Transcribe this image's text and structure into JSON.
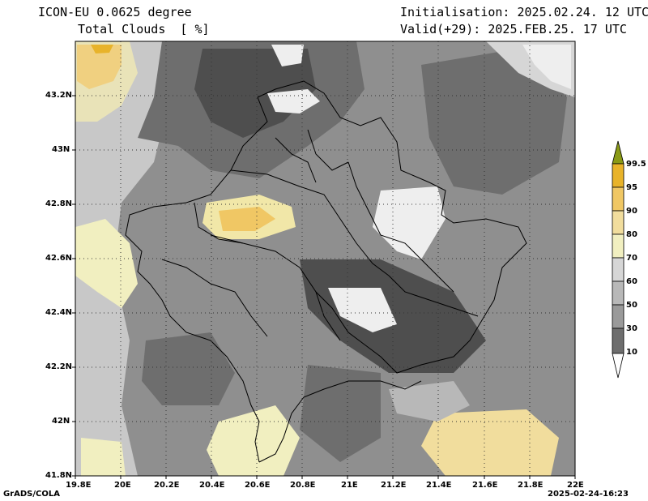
{
  "header": {
    "model": "ICON-EU 0.0625 degree",
    "variable": "Total Clouds  [ %]",
    "init": "Initialisation: 2025.02.24. 12 UTC",
    "valid": "Valid(+29): 2025.FEB.25. 17 UTC"
  },
  "axes": {
    "lat_labels": [
      "43.2N",
      "43N",
      "42.8N",
      "42.6N",
      "42.4N",
      "42.2N",
      "42N",
      "41.8N"
    ],
    "lon_labels": [
      "19.8E",
      "20E",
      "20.2E",
      "20.4E",
      "20.6E",
      "20.8E",
      "21E",
      "21.2E",
      "21.4E",
      "21.6E",
      "21.8E",
      "22E"
    ]
  },
  "legend": {
    "labels": [
      "99.5",
      "95",
      "90",
      "80",
      "70",
      "60",
      "50",
      "30",
      "10"
    ],
    "colors": {
      "c99": "#8a9a16",
      "c95": "#e8b32a",
      "c90": "#f0c764",
      "c80": "#f1dd9d",
      "c70": "#f1efc0",
      "c60": "#d6d6d6",
      "c50": "#b8b8b8",
      "c30": "#9a9a9a",
      "c10": "#6e6e6e",
      "c0": "#4e4e4e"
    }
  },
  "footer": {
    "left": "GrADS/COLA",
    "right": "2025-02-24-16:23"
  }
}
